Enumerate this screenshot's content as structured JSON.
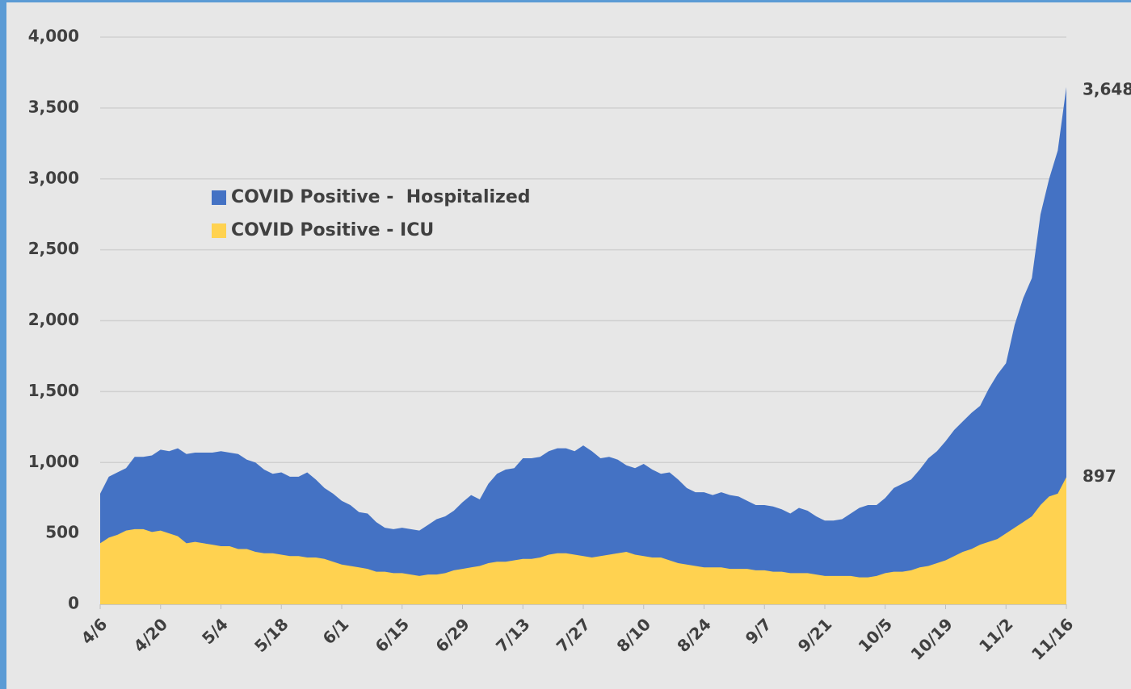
{
  "chart_data": {
    "type": "area",
    "categories": [
      "4/6",
      null,
      null,
      null,
      null,
      null,
      null,
      "4/20",
      null,
      null,
      null,
      null,
      null,
      null,
      "5/4",
      null,
      null,
      null,
      null,
      null,
      null,
      "5/18",
      null,
      null,
      null,
      null,
      null,
      null,
      "6/1",
      null,
      null,
      null,
      null,
      null,
      null,
      "6/15",
      null,
      null,
      null,
      null,
      null,
      null,
      "6/29",
      null,
      null,
      null,
      null,
      null,
      null,
      "7/13",
      null,
      null,
      null,
      null,
      null,
      null,
      "7/27",
      null,
      null,
      null,
      null,
      null,
      null,
      "8/10",
      null,
      null,
      null,
      null,
      null,
      null,
      "8/24",
      null,
      null,
      null,
      null,
      null,
      null,
      "9/7",
      null,
      null,
      null,
      null,
      null,
      null,
      "9/21",
      null,
      null,
      null,
      null,
      null,
      null,
      "10/5",
      null,
      null,
      null,
      null,
      null,
      null,
      "10/19",
      null,
      null,
      null,
      null,
      null,
      null,
      "11/2",
      null,
      null,
      null,
      null,
      null,
      null,
      "11/16"
    ],
    "series": [
      {
        "name": "COVID Positive -  Hospitalized",
        "color": "#4472c4",
        "last_label": "3,648",
        "values": [
          780,
          900,
          930,
          960,
          1040,
          1040,
          1050,
          1090,
          1080,
          1100,
          1060,
          1070,
          1070,
          1070,
          1080,
          1070,
          1060,
          1020,
          1000,
          950,
          920,
          930,
          900,
          900,
          930,
          880,
          820,
          780,
          730,
          700,
          650,
          640,
          580,
          540,
          530,
          540,
          530,
          520,
          560,
          600,
          620,
          660,
          720,
          770,
          740,
          850,
          920,
          950,
          960,
          1030,
          1030,
          1040,
          1080,
          1100,
          1100,
          1080,
          1120,
          1080,
          1030,
          1040,
          1020,
          980,
          960,
          990,
          950,
          920,
          930,
          880,
          820,
          790,
          790,
          770,
          790,
          770,
          760,
          730,
          700,
          700,
          690,
          670,
          640,
          680,
          660,
          620,
          590,
          590,
          600,
          640,
          680,
          700,
          700,
          750,
          820,
          850,
          880,
          950,
          1030,
          1080,
          1150,
          1230,
          1290,
          1350,
          1400,
          1520,
          1620,
          1700,
          1970,
          2160,
          2300,
          2750,
          3000,
          3200,
          3648
        ]
      },
      {
        "name": "COVID Positive - ICU",
        "color": "#ffd250",
        "last_label": "897",
        "values": [
          430,
          470,
          490,
          520,
          530,
          530,
          510,
          520,
          500,
          480,
          430,
          440,
          430,
          420,
          410,
          410,
          390,
          390,
          370,
          360,
          360,
          350,
          340,
          340,
          330,
          330,
          320,
          300,
          280,
          270,
          260,
          250,
          230,
          230,
          220,
          220,
          210,
          200,
          210,
          210,
          220,
          240,
          250,
          260,
          270,
          290,
          300,
          300,
          310,
          320,
          320,
          330,
          350,
          360,
          360,
          350,
          340,
          330,
          340,
          350,
          360,
          370,
          350,
          340,
          330,
          330,
          310,
          290,
          280,
          270,
          260,
          260,
          260,
          250,
          250,
          250,
          240,
          240,
          230,
          230,
          220,
          220,
          220,
          210,
          200,
          200,
          200,
          200,
          190,
          190,
          200,
          220,
          230,
          230,
          240,
          260,
          270,
          290,
          310,
          340,
          370,
          390,
          420,
          440,
          460,
          500,
          540,
          580,
          620,
          700,
          760,
          780,
          897
        ]
      }
    ],
    "ylim": [
      0,
      4000
    ],
    "yticks": [
      0,
      500,
      {
        "value": 1000,
        "label": "1,000"
      },
      {
        "value": 1500,
        "label": "1,500"
      },
      {
        "value": 2000,
        "label": "2,000"
      },
      {
        "value": 2500,
        "label": "2,500"
      },
      {
        "value": 3000,
        "label": "3,000"
      },
      {
        "value": 3500,
        "label": "3,500"
      },
      {
        "value": 4000,
        "label": "4,000"
      }
    ],
    "grid": true
  }
}
